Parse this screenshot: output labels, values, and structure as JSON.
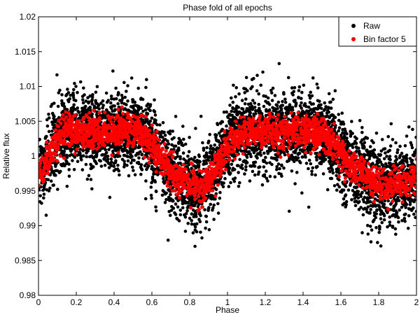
{
  "chart_data": {
    "type": "scatter",
    "title": "Phase fold of all epochs",
    "xlabel": "Phase",
    "ylabel": "Relative flux",
    "xlim": [
      0,
      2
    ],
    "ylim": [
      0.98,
      1.02
    ],
    "x_ticks": [
      "0",
      "0.2",
      "0.4",
      "0.6",
      "0.8",
      "1",
      "1.2",
      "1.4",
      "1.6",
      "1.8",
      "2"
    ],
    "y_ticks": [
      "1.02",
      "1.015",
      "1.01",
      "1.005",
      "1",
      "0.995",
      "0.99",
      "0.985",
      "0.98"
    ],
    "grid": false,
    "legend_position": "top-right",
    "series": [
      {
        "name": "Raw",
        "color": "#000000",
        "x": [
          0.0,
          0.025,
          0.05,
          0.075,
          0.1,
          0.125,
          0.15,
          0.175,
          0.2,
          0.225,
          0.25,
          0.275,
          0.3,
          0.325,
          0.35,
          0.375,
          0.4,
          0.425,
          0.45,
          0.475,
          0.5,
          0.525,
          0.55,
          0.575,
          0.6,
          0.625,
          0.65,
          0.675,
          0.7,
          0.725,
          0.75,
          0.775,
          0.8,
          0.825,
          0.85,
          0.875,
          0.9,
          0.925,
          0.95,
          0.975,
          1.0,
          1.025,
          1.05,
          1.075,
          1.1,
          1.125,
          1.15,
          1.175,
          1.2,
          1.225,
          1.25,
          1.275,
          1.3,
          1.325,
          1.35,
          1.375,
          1.4,
          1.425,
          1.45,
          1.475,
          1.5,
          1.525,
          1.55,
          1.575,
          1.6,
          1.625,
          1.65,
          1.675,
          1.7,
          1.725,
          1.75,
          1.775,
          1.8,
          1.825,
          1.85,
          1.875,
          1.9,
          1.925,
          1.95,
          1.975,
          2.0
        ],
        "y": [
          0.9975,
          0.9982,
          0.9995,
          1.0012,
          1.0024,
          1.0031,
          1.0035,
          1.0037,
          1.0038,
          1.0036,
          1.0035,
          1.0035,
          1.0034,
          1.0033,
          1.0033,
          1.0034,
          1.0035,
          1.0036,
          1.0037,
          1.0038,
          1.0037,
          1.0035,
          1.0031,
          1.0024,
          1.0014,
          1.0004,
          0.9996,
          0.9988,
          0.998,
          0.9975,
          0.997,
          0.9965,
          0.996,
          0.9956,
          0.9953,
          0.9957,
          0.9965,
          0.9976,
          0.999,
          1.0005,
          1.0014,
          1.0022,
          1.0028,
          1.0032,
          1.0034,
          1.0035,
          1.0035,
          1.0034,
          1.0034,
          1.0034,
          1.0034,
          1.0034,
          1.0034,
          1.0035,
          1.0036,
          1.0036,
          1.0037,
          1.0037,
          1.0036,
          1.0034,
          1.0031,
          1.0026,
          1.0019,
          1.0011,
          1.0002,
          0.9994,
          0.9986,
          0.998,
          0.9975,
          0.997,
          0.9966,
          0.9962,
          0.996,
          0.9958,
          0.9957,
          0.9958,
          0.996,
          0.9962,
          0.9965,
          0.9968,
          0.997
        ],
        "scatter": 0.006,
        "points_per_bin": 60
      },
      {
        "name": "Bin factor 5",
        "color": "#ff0000",
        "x": [
          0.0,
          0.025,
          0.05,
          0.075,
          0.1,
          0.125,
          0.15,
          0.175,
          0.2,
          0.225,
          0.25,
          0.275,
          0.3,
          0.325,
          0.35,
          0.375,
          0.4,
          0.425,
          0.45,
          0.475,
          0.5,
          0.525,
          0.55,
          0.575,
          0.6,
          0.625,
          0.65,
          0.675,
          0.7,
          0.725,
          0.75,
          0.775,
          0.8,
          0.825,
          0.85,
          0.875,
          0.9,
          0.925,
          0.95,
          0.975,
          1.0,
          1.025,
          1.05,
          1.075,
          1.1,
          1.125,
          1.15,
          1.175,
          1.2,
          1.225,
          1.25,
          1.275,
          1.3,
          1.325,
          1.35,
          1.375,
          1.4,
          1.425,
          1.45,
          1.475,
          1.5,
          1.525,
          1.55,
          1.575,
          1.6,
          1.625,
          1.65,
          1.675,
          1.7,
          1.725,
          1.75,
          1.775,
          1.8,
          1.825,
          1.85,
          1.875,
          1.9,
          1.925,
          1.95,
          1.975,
          2.0
        ],
        "y": [
          0.9975,
          0.9982,
          0.9995,
          1.0012,
          1.0024,
          1.0031,
          1.0035,
          1.0037,
          1.0038,
          1.0036,
          1.0035,
          1.0035,
          1.0034,
          1.0033,
          1.0033,
          1.0034,
          1.0035,
          1.0036,
          1.0037,
          1.0038,
          1.0037,
          1.0035,
          1.0031,
          1.0024,
          1.0014,
          1.0004,
          0.9996,
          0.9988,
          0.998,
          0.9975,
          0.997,
          0.9965,
          0.996,
          0.9956,
          0.9953,
          0.9957,
          0.9965,
          0.9976,
          0.999,
          1.0005,
          1.0014,
          1.0022,
          1.0028,
          1.0032,
          1.0034,
          1.0035,
          1.0035,
          1.0034,
          1.0034,
          1.0034,
          1.0034,
          1.0034,
          1.0034,
          1.0035,
          1.0036,
          1.0036,
          1.0037,
          1.0037,
          1.0036,
          1.0034,
          1.0031,
          1.0026,
          1.0019,
          1.0011,
          1.0002,
          0.9994,
          0.9986,
          0.998,
          0.9975,
          0.997,
          0.9966,
          0.9962,
          0.996,
          0.9958,
          0.9957,
          0.9958,
          0.996,
          0.9962,
          0.9965,
          0.9968,
          0.997
        ],
        "scatter": 0.0025,
        "points_per_bin": 28
      }
    ]
  }
}
